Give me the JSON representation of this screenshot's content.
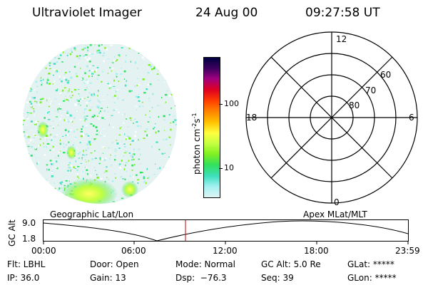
{
  "header": {
    "title": "Ultraviolet Imager",
    "date": "24 Aug 00",
    "time": "09:27:58 UT"
  },
  "colorbar": {
    "unit_label": "photon cm",
    "unit_exp_1": "-2",
    "unit_mid": "s",
    "unit_exp_2": "-1",
    "tick_100": "100",
    "tick_10": "10",
    "colors": [
      "#000040",
      "#400060",
      "#a00080",
      "#e00020",
      "#ff4000",
      "#ff8000",
      "#ffc000",
      "#ffff40",
      "#c0ff40",
      "#80f020",
      "#30e060",
      "#40e0c0",
      "#a0f0f0",
      "#e0f4f4"
    ]
  },
  "polar": {
    "labels": {
      "top": "12",
      "left": "18",
      "right": "6",
      "bottom": "0"
    },
    "rings": [
      "60",
      "70",
      "80"
    ]
  },
  "timeline": {
    "left_title": "Geographic Lat/Lon",
    "right_title": "Apex MLat/MLT",
    "ylabel": "GC Alt",
    "y_ticks": [
      "9.0",
      "1.8"
    ],
    "x_ticks": [
      "00:00",
      "06:00",
      "12:00",
      "18:00",
      "23:59"
    ],
    "cursor_color": "#cc0000"
  },
  "info": {
    "flt": "Flt: LBHL",
    "ip": "IP: 36.0",
    "door": "Door: Open",
    "gain": "Gain: 13",
    "mode": "Mode: Normal",
    "dsp": "Dsp:  −76.3",
    "gcalt": "GC Alt: 5.0 Re",
    "seq": "Seq: 39",
    "glat": "GLat: *****",
    "glon": "GLon: *****"
  }
}
